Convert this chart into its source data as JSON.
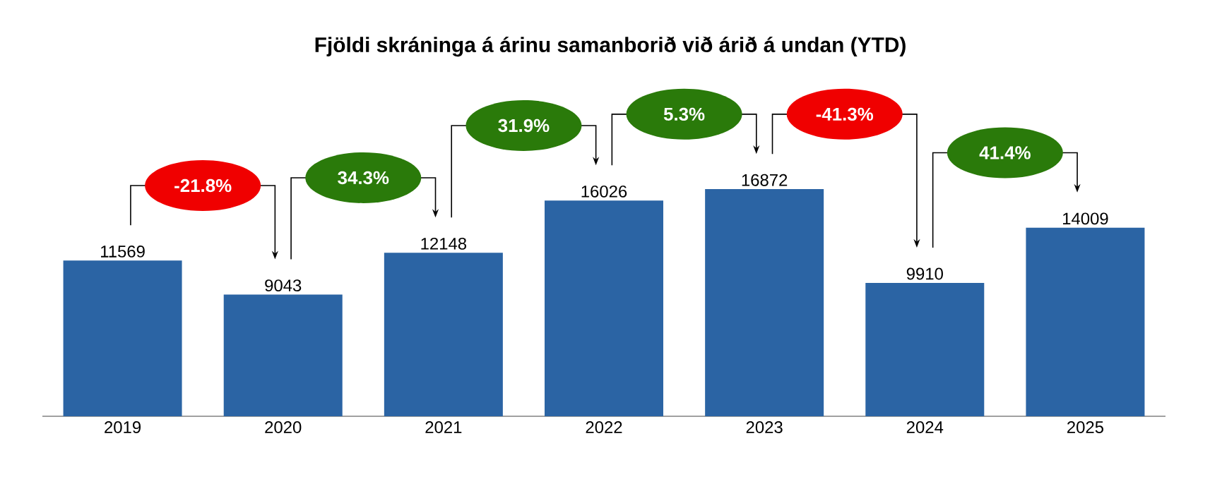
{
  "chart_data": {
    "type": "bar",
    "title": "Fjöldi skráninga á árinu samanborið við árið á undan (YTD)",
    "categories": [
      "2019",
      "2020",
      "2021",
      "2022",
      "2023",
      "2024",
      "2025"
    ],
    "values": [
      11569,
      9043,
      12148,
      16026,
      16872,
      9910,
      14009
    ],
    "color": "#2b64a4",
    "data_labels": true,
    "annotations": [
      "-21.8%",
      "34.3%",
      "31.9%",
      "5.3%",
      "-41.3%",
      "41.4%"
    ]
  }
}
